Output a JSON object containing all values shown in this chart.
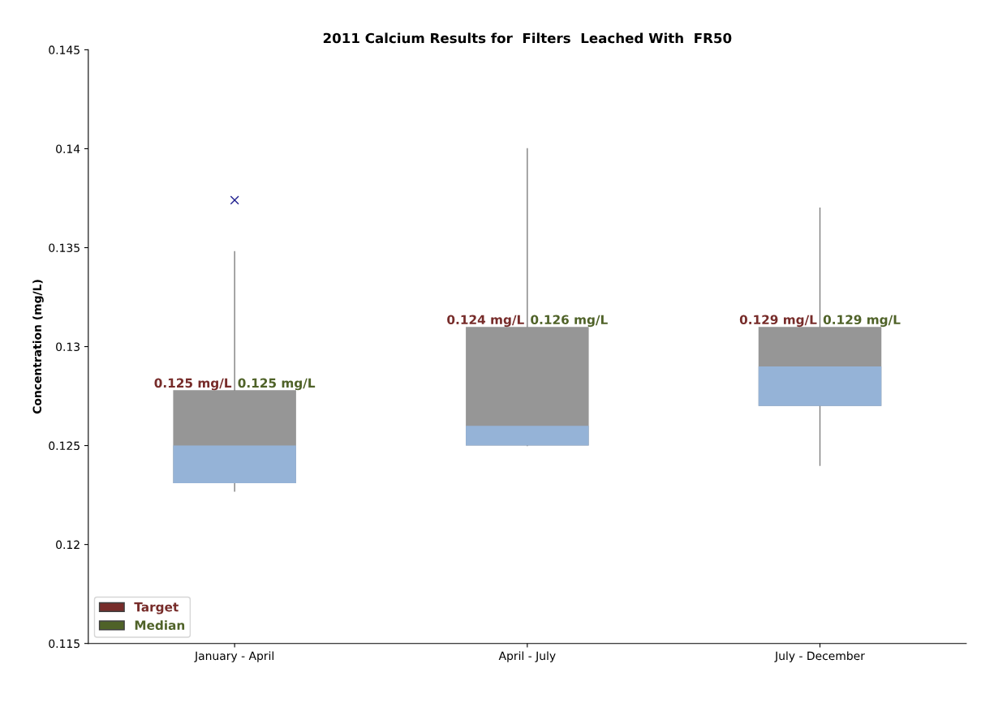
{
  "chart_data": {
    "type": "box",
    "title": "2011 Calcium Results for  Filters  Leached With  FR50",
    "ylabel": "Concentration (mg/L)",
    "categories": [
      "January - April",
      "April - July",
      "July - December"
    ],
    "boxes": [
      {
        "low": 0.1227,
        "q1": 0.1231,
        "median": 0.125,
        "q3": 0.1278,
        "high": 0.1348,
        "outliers": [
          0.1374
        ]
      },
      {
        "low": 0.125,
        "q1": 0.125,
        "median": 0.126,
        "q3": 0.131,
        "high": 0.14
      },
      {
        "low": 0.124,
        "q1": 0.127,
        "median": 0.129,
        "q3": 0.131,
        "high": 0.137
      }
    ],
    "color": "#969696",
    "series": [
      {
        "name": "Target",
        "color": "#772c2a",
        "values": [
          null,
          null,
          null
        ],
        "value_labels": [
          "0.125 mg/L",
          "0.124 mg/L",
          "0.129 mg/L"
        ]
      },
      {
        "name": "Median",
        "color": "#4f6228",
        "values": [
          null,
          null,
          null
        ],
        "value_labels": [
          "0.125 mg/L",
          "0.126 mg/L",
          "0.129 mg/L"
        ]
      }
    ],
    "ylim": [
      0.115,
      0.145
    ],
    "yticks": [
      0.115,
      0.12,
      0.125,
      0.13,
      0.135,
      0.14,
      0.145
    ],
    "grid": false,
    "legend": "bottom left"
  }
}
